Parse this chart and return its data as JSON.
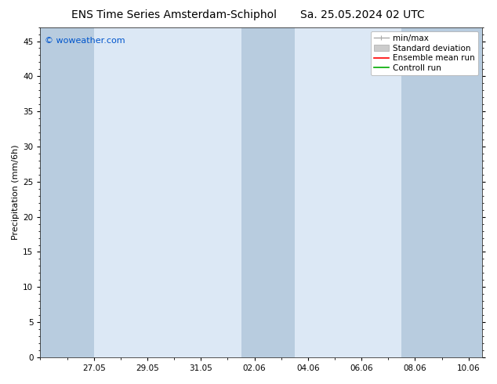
{
  "title_left": "ENS Time Series Amsterdam-Schiphol",
  "title_right": "Sa. 25.05.2024 02 UTC",
  "ylabel": "Precipitation (mm/6h)",
  "watermark": "© woweather.com",
  "watermark_color": "#0055cc",
  "ylim": [
    0,
    47
  ],
  "yticks": [
    0,
    5,
    10,
    15,
    20,
    25,
    30,
    35,
    40,
    45
  ],
  "bg_color": "#ffffff",
  "plot_bg_color": "#dce8f5",
  "shaded_band_color": "#b8ccdf",
  "xtick_labels": [
    "27.05",
    "29.05",
    "31.05",
    "02.06",
    "04.06",
    "06.06",
    "08.06",
    "10.06"
  ],
  "xtick_positions_days": [
    2,
    4,
    6,
    8,
    10,
    12,
    14,
    16
  ],
  "total_days": 16.5,
  "shaded_bands": [
    {
      "start_day": 0.0,
      "end_day": 2.0
    },
    {
      "start_day": 7.5,
      "end_day": 9.5
    },
    {
      "start_day": 13.5,
      "end_day": 16.5
    }
  ],
  "legend_labels": [
    "min/max",
    "Standard deviation",
    "Ensemble mean run",
    "Controll run"
  ],
  "legend_colors": [
    "#aaaaaa",
    "#cccccc",
    "#ff0000",
    "#00aa00"
  ],
  "title_fontsize": 10,
  "tick_label_fontsize": 7.5,
  "ylabel_fontsize": 8,
  "watermark_fontsize": 8,
  "legend_fontsize": 7.5
}
